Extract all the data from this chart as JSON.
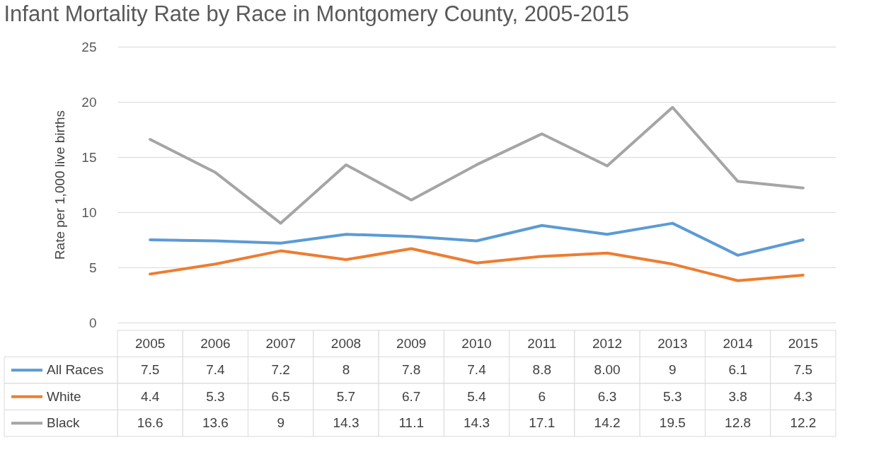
{
  "chart_data": {
    "type": "line",
    "title": "Infant Mortality Rate by Race in Montgomery County, 2005-2015",
    "ylabel": "Rate per 1,000 live births",
    "categories": [
      "2005",
      "2006",
      "2007",
      "2008",
      "2009",
      "2010",
      "2011",
      "2012",
      "2013",
      "2014",
      "2015"
    ],
    "series": [
      {
        "name": "All Races",
        "color": "#5b9bd5",
        "values": [
          7.5,
          7.4,
          7.2,
          8,
          7.8,
          7.4,
          8.8,
          8.0,
          9,
          6.1,
          7.5
        ],
        "value_labels": [
          "7.5",
          "7.4",
          "7.2",
          "8",
          "7.8",
          "7.4",
          "8.8",
          "8.00",
          "9",
          "6.1",
          "7.5"
        ]
      },
      {
        "name": "White",
        "color": "#ed7d31",
        "values": [
          4.4,
          5.3,
          6.5,
          5.7,
          6.7,
          5.4,
          6,
          6.3,
          5.3,
          3.8,
          4.3
        ],
        "value_labels": [
          "4.4",
          "5.3",
          "6.5",
          "5.7",
          "6.7",
          "5.4",
          "6",
          "6.3",
          "5.3",
          "3.8",
          "4.3"
        ]
      },
      {
        "name": "Black",
        "color": "#a5a5a5",
        "values": [
          16.6,
          13.6,
          9,
          14.3,
          11.1,
          14.3,
          17.1,
          14.2,
          19.5,
          12.8,
          12.2
        ],
        "value_labels": [
          "16.6",
          "13.6",
          "9",
          "14.3",
          "11.1",
          "14.3",
          "17.1",
          "14.2",
          "19.5",
          "12.8",
          "12.2"
        ]
      }
    ],
    "ylim": [
      0,
      25
    ],
    "yticks": [
      0,
      5,
      10,
      15,
      20,
      25
    ],
    "grid": "y",
    "legend": "bottom",
    "marker": "none",
    "line_style": "solid"
  }
}
